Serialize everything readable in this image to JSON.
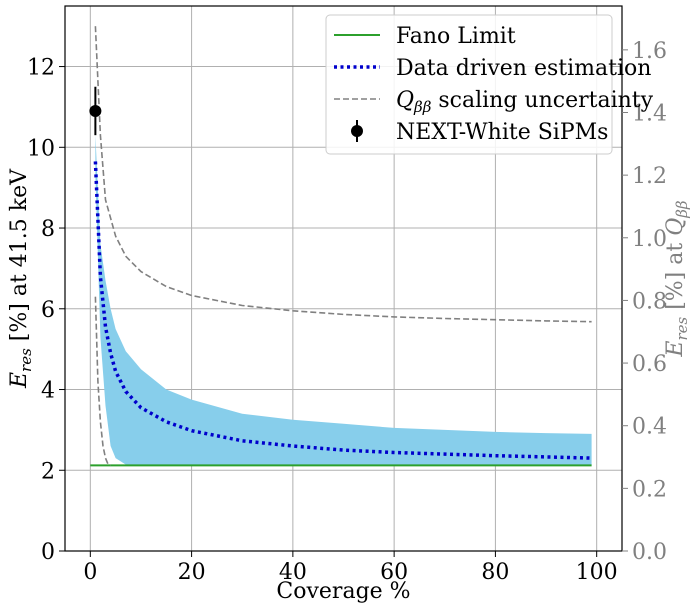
{
  "chart_data": {
    "type": "line",
    "title": "",
    "xlabel": "Coverage %",
    "ylabel": "E_res [%] at 41.5 keV",
    "ylabel_right": "E_res [%] at Q_ββ",
    "xlim": [
      -5,
      105
    ],
    "ylim": [
      0,
      13.5
    ],
    "ylim_right": [
      0,
      1.74
    ],
    "grid": true,
    "x_ticks": [
      0,
      20,
      40,
      60,
      80,
      100
    ],
    "y_ticks": [
      0,
      2,
      4,
      6,
      8,
      10,
      12
    ],
    "y_ticks_right": [
      "0.0",
      "0.2",
      "0.4",
      "0.6",
      "0.8",
      "1.0",
      "1.2",
      "1.4",
      "1.6"
    ],
    "legend": {
      "placement": "top-right",
      "entries": [
        {
          "label": "Fano Limit",
          "style": "solid",
          "color": "#2ca02c"
        },
        {
          "label": "Data driven estimation",
          "style": "dotted",
          "color": "#0000cc"
        },
        {
          "label": "scaling uncertainty",
          "prefix": "Q",
          "sub": "ββ",
          "style": "dashed",
          "color": "#808080"
        },
        {
          "label": "NEXT-White SiPMs",
          "style": "errorbar-marker",
          "color": "#000000"
        }
      ]
    },
    "series": [
      {
        "name": "Fano Limit",
        "x": [
          0,
          99
        ],
        "values": [
          2.12,
          2.12
        ],
        "color": "#2ca02c"
      },
      {
        "name": "Data driven estimation",
        "x": [
          1,
          2,
          3,
          4,
          5,
          7,
          10,
          15,
          20,
          30,
          40,
          50,
          60,
          70,
          80,
          90,
          99
        ],
        "values": [
          9.65,
          6.8,
          5.55,
          4.9,
          4.45,
          3.95,
          3.55,
          3.2,
          2.98,
          2.73,
          2.6,
          2.5,
          2.44,
          2.4,
          2.36,
          2.33,
          2.3
        ],
        "color": "#0000cc"
      },
      {
        "name": "Uncertainty band upper",
        "x": [
          1,
          2,
          3,
          4,
          5,
          7,
          10,
          15,
          20,
          30,
          40,
          50,
          60,
          70,
          80,
          90,
          99
        ],
        "values": [
          10.3,
          7.6,
          6.7,
          6.0,
          5.5,
          4.95,
          4.5,
          4.0,
          3.75,
          3.4,
          3.25,
          3.15,
          3.05,
          3.0,
          2.95,
          2.92,
          2.9
        ],
        "color": "#87ceeb"
      },
      {
        "name": "Uncertainty band lower",
        "x": [
          1,
          2,
          3,
          4,
          5,
          7,
          10,
          15,
          20,
          30,
          40,
          50,
          60,
          70,
          80,
          90,
          99
        ],
        "values": [
          9.3,
          5.3,
          3.6,
          2.6,
          2.3,
          2.14,
          2.13,
          2.12,
          2.12,
          2.12,
          2.12,
          2.12,
          2.12,
          2.12,
          2.12,
          2.12,
          2.12
        ],
        "color": "#87ceeb"
      },
      {
        "name": "Q_ββ scaling uncertainty upper",
        "x": [
          1,
          2,
          3,
          5,
          7,
          10,
          15,
          20,
          30,
          40,
          50,
          60,
          70,
          80,
          90,
          99
        ],
        "values": [
          13.0,
          10.3,
          8.7,
          7.8,
          7.3,
          6.92,
          6.55,
          6.33,
          6.08,
          5.95,
          5.86,
          5.8,
          5.76,
          5.73,
          5.7,
          5.68
        ],
        "color": "#808080"
      },
      {
        "name": "Q_ββ scaling uncertainty lower",
        "x": [
          1,
          1.5,
          2,
          2.5,
          3,
          3.5,
          4
        ],
        "values": [
          6.3,
          4.2,
          3.2,
          2.6,
          2.3,
          2.15,
          2.12
        ],
        "color": "#808080"
      },
      {
        "name": "NEXT-White SiPMs",
        "x": [
          1
        ],
        "values": [
          10.9
        ],
        "err": [
          0.6
        ],
        "color": "#000000"
      }
    ]
  }
}
